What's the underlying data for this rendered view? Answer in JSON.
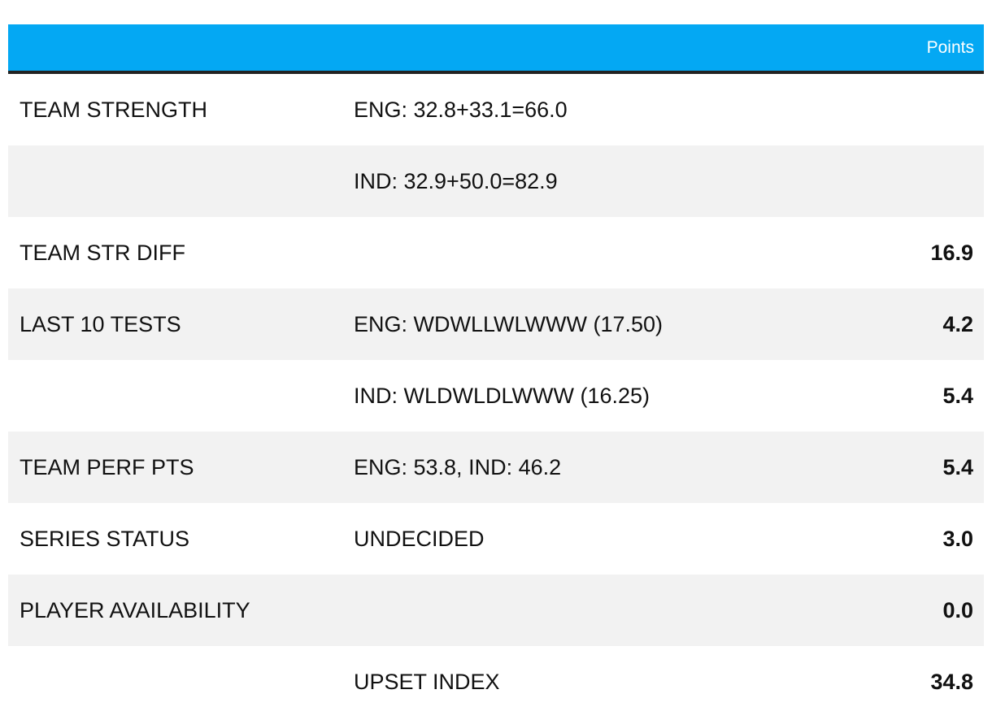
{
  "header": {
    "points_label": "Points"
  },
  "rows": [
    {
      "label": "TEAM STRENGTH",
      "detail": "ENG: 32.8+33.1=66.0",
      "points": ""
    },
    {
      "label": "",
      "detail": "IND: 32.9+50.0=82.9",
      "points": ""
    },
    {
      "label": "TEAM STR DIFF",
      "detail": "",
      "points": "16.9"
    },
    {
      "label": "LAST 10 TESTS",
      "detail": "ENG: WDWLLWLWWW (17.50)",
      "points": "4.2"
    },
    {
      "label": "",
      "detail": "IND: WLDWLDLWWW (16.25)",
      "points": "5.4"
    },
    {
      "label": "TEAM PERF PTS",
      "detail": "ENG: 53.8, IND: 46.2",
      "points": "5.4"
    },
    {
      "label": "SERIES STATUS",
      "detail": "UNDECIDED",
      "points": "3.0"
    },
    {
      "label": "PLAYER AVAILABILITY",
      "detail": "",
      "points": "0.0"
    },
    {
      "label": "",
      "detail": "UPSET INDEX",
      "points": "34.8"
    }
  ],
  "colors": {
    "header_bg": "#04a8f3",
    "header_border": "#222222",
    "shaded_row": "#f2f2f2"
  }
}
